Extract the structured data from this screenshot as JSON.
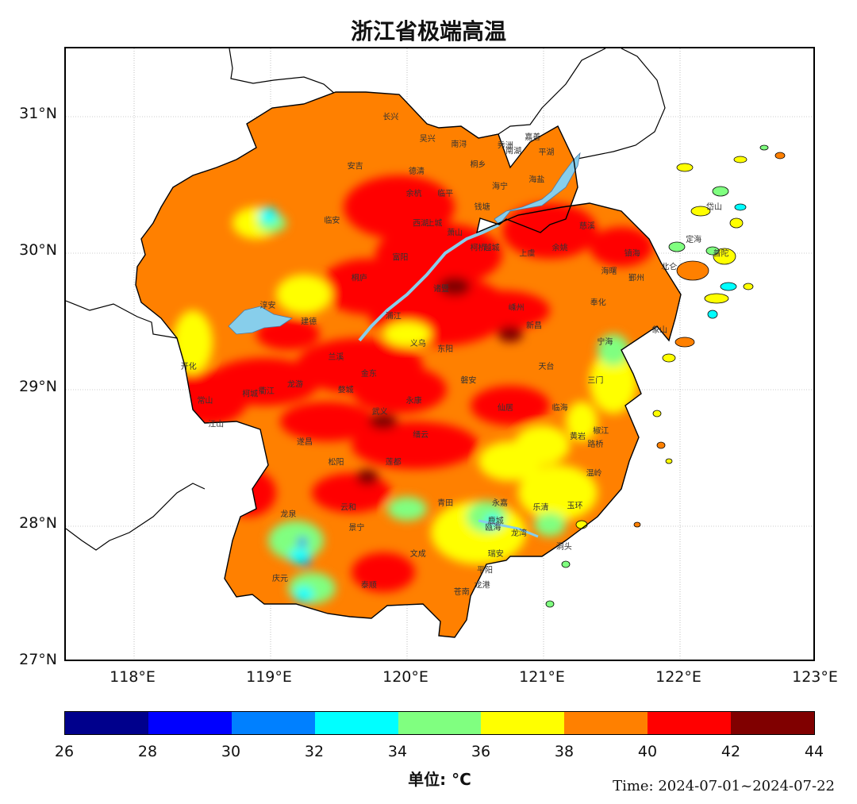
{
  "title": "浙江省极端高温",
  "axes": {
    "lat_labels": [
      "31°N",
      "30°N",
      "29°N",
      "28°N",
      "27°N"
    ],
    "lon_labels": [
      "118°E",
      "119°E",
      "120°E",
      "121°E",
      "122°E",
      "123°E"
    ],
    "lat_range": [
      27,
      31.5
    ],
    "lon_range": [
      117.5,
      123
    ],
    "grid": true
  },
  "colorbar": {
    "ticks": [
      "26",
      "28",
      "30",
      "32",
      "34",
      "36",
      "38",
      "40",
      "42",
      "44"
    ],
    "colors": [
      "#00008c",
      "#0000ff",
      "#0080ff",
      "#00ffff",
      "#80ff80",
      "#ffff00",
      "#ff8000",
      "#ff0000",
      "#800000"
    ],
    "unit_label": "单位: °C"
  },
  "timestamp": "Time: 2024-07-01~2024-07-22",
  "cities": [
    {
      "name": "嘉善",
      "lon": 120.92,
      "lat": 30.83
    },
    {
      "name": "秀洲",
      "lon": 120.72,
      "lat": 30.77
    },
    {
      "name": "南湖",
      "lon": 120.78,
      "lat": 30.73
    },
    {
      "name": "平湖",
      "lon": 121.02,
      "lat": 30.72
    },
    {
      "name": "海盐",
      "lon": 120.95,
      "lat": 30.52
    },
    {
      "name": "海宁",
      "lon": 120.68,
      "lat": 30.47
    },
    {
      "name": "桐乡",
      "lon": 120.52,
      "lat": 30.63
    },
    {
      "name": "南浔",
      "lon": 120.38,
      "lat": 30.78
    },
    {
      "name": "吴兴",
      "lon": 120.15,
      "lat": 30.82
    },
    {
      "name": "长兴",
      "lon": 119.88,
      "lat": 30.98
    },
    {
      "name": "安吉",
      "lon": 119.62,
      "lat": 30.62
    },
    {
      "name": "德清",
      "lon": 120.07,
      "lat": 30.58
    },
    {
      "name": "余杭",
      "lon": 120.05,
      "lat": 30.42
    },
    {
      "name": "临平",
      "lon": 120.28,
      "lat": 30.42
    },
    {
      "name": "钱塘",
      "lon": 120.55,
      "lat": 30.32
    },
    {
      "name": "临安",
      "lon": 119.45,
      "lat": 30.22
    },
    {
      "name": "西湖",
      "lon": 120.1,
      "lat": 30.2
    },
    {
      "name": "上城",
      "lon": 120.2,
      "lat": 30.2
    },
    {
      "name": "萧山",
      "lon": 120.35,
      "lat": 30.13
    },
    {
      "name": "柯桥",
      "lon": 120.52,
      "lat": 30.02
    },
    {
      "name": "越城",
      "lon": 120.62,
      "lat": 30.02
    },
    {
      "name": "上虞",
      "lon": 120.88,
      "lat": 29.98
    },
    {
      "name": "慈溪",
      "lon": 121.32,
      "lat": 30.18
    },
    {
      "name": "余姚",
      "lon": 121.12,
      "lat": 30.02
    },
    {
      "name": "镇海",
      "lon": 121.65,
      "lat": 29.98
    },
    {
      "name": "海曙",
      "lon": 121.48,
      "lat": 29.85
    },
    {
      "name": "鄞州",
      "lon": 121.68,
      "lat": 29.8
    },
    {
      "name": "北仑",
      "lon": 121.92,
      "lat": 29.88
    },
    {
      "name": "定海",
      "lon": 122.1,
      "lat": 30.08
    },
    {
      "name": "岱山",
      "lon": 122.25,
      "lat": 30.32
    },
    {
      "name": "普陀",
      "lon": 122.3,
      "lat": 29.98
    },
    {
      "name": "奉化",
      "lon": 121.4,
      "lat": 29.62
    },
    {
      "name": "象山",
      "lon": 121.85,
      "lat": 29.42
    },
    {
      "name": "宁海",
      "lon": 121.45,
      "lat": 29.33
    },
    {
      "name": "富阳",
      "lon": 119.95,
      "lat": 29.95
    },
    {
      "name": "桐庐",
      "lon": 119.65,
      "lat": 29.8
    },
    {
      "name": "诸暨",
      "lon": 120.25,
      "lat": 29.72
    },
    {
      "name": "嵊州",
      "lon": 120.8,
      "lat": 29.58
    },
    {
      "name": "新昌",
      "lon": 120.93,
      "lat": 29.45
    },
    {
      "name": "建德",
      "lon": 119.28,
      "lat": 29.48
    },
    {
      "name": "浦江",
      "lon": 119.9,
      "lat": 29.52
    },
    {
      "name": "淳安",
      "lon": 118.98,
      "lat": 29.6
    },
    {
      "name": "兰溪",
      "lon": 119.48,
      "lat": 29.22
    },
    {
      "name": "义乌",
      "lon": 120.08,
      "lat": 29.32
    },
    {
      "name": "东阳",
      "lon": 120.28,
      "lat": 29.28
    },
    {
      "name": "天台",
      "lon": 121.02,
      "lat": 29.15
    },
    {
      "name": "三门",
      "lon": 121.38,
      "lat": 29.05
    },
    {
      "name": "开化",
      "lon": 118.4,
      "lat": 29.15
    },
    {
      "name": "常山",
      "lon": 118.52,
      "lat": 28.9
    },
    {
      "name": "柯城",
      "lon": 118.85,
      "lat": 28.95
    },
    {
      "name": "衢江",
      "lon": 118.97,
      "lat": 28.97
    },
    {
      "name": "龙游",
      "lon": 119.18,
      "lat": 29.02
    },
    {
      "name": "婺城",
      "lon": 119.55,
      "lat": 28.98
    },
    {
      "name": "金东",
      "lon": 119.72,
      "lat": 29.1
    },
    {
      "name": "永康",
      "lon": 120.05,
      "lat": 28.9
    },
    {
      "name": "磐安",
      "lon": 120.45,
      "lat": 29.05
    },
    {
      "name": "武义",
      "lon": 119.8,
      "lat": 28.82
    },
    {
      "name": "仙居",
      "lon": 120.72,
      "lat": 28.85
    },
    {
      "name": "临海",
      "lon": 121.12,
      "lat": 28.85
    },
    {
      "name": "椒江",
      "lon": 121.42,
      "lat": 28.68
    },
    {
      "name": "黄岩",
      "lon": 121.25,
      "lat": 28.64
    },
    {
      "name": "路桥",
      "lon": 121.38,
      "lat": 28.58
    },
    {
      "name": "温岭",
      "lon": 121.37,
      "lat": 28.37
    },
    {
      "name": "玉环",
      "lon": 121.23,
      "lat": 28.13
    },
    {
      "name": "江山",
      "lon": 118.6,
      "lat": 28.73
    },
    {
      "name": "缙云",
      "lon": 120.1,
      "lat": 28.65
    },
    {
      "name": "遂昌",
      "lon": 119.25,
      "lat": 28.6
    },
    {
      "name": "松阳",
      "lon": 119.48,
      "lat": 28.45
    },
    {
      "name": "莲都",
      "lon": 119.9,
      "lat": 28.45
    },
    {
      "name": "永嘉",
      "lon": 120.68,
      "lat": 28.15
    },
    {
      "name": "乐清",
      "lon": 120.98,
      "lat": 28.12
    },
    {
      "name": "青田",
      "lon": 120.28,
      "lat": 28.15
    },
    {
      "name": "龙泉",
      "lon": 119.13,
      "lat": 28.07
    },
    {
      "name": "云和",
      "lon": 119.57,
      "lat": 28.12
    },
    {
      "name": "景宁",
      "lon": 119.63,
      "lat": 27.97
    },
    {
      "name": "鹿城",
      "lon": 120.65,
      "lat": 28.02
    },
    {
      "name": "瓯海",
      "lon": 120.63,
      "lat": 27.97
    },
    {
      "name": "龙湾",
      "lon": 120.82,
      "lat": 27.93
    },
    {
      "name": "洞头",
      "lon": 121.15,
      "lat": 27.83
    },
    {
      "name": "文成",
      "lon": 120.08,
      "lat": 27.78
    },
    {
      "name": "瑞安",
      "lon": 120.65,
      "lat": 27.78
    },
    {
      "name": "庆元",
      "lon": 119.07,
      "lat": 27.6
    },
    {
      "name": "平阳",
      "lon": 120.57,
      "lat": 27.66
    },
    {
      "name": "泰顺",
      "lon": 119.72,
      "lat": 27.55
    },
    {
      "name": "龙港",
      "lon": 120.55,
      "lat": 27.55
    },
    {
      "name": "苍南",
      "lon": 120.4,
      "lat": 27.5
    }
  ]
}
